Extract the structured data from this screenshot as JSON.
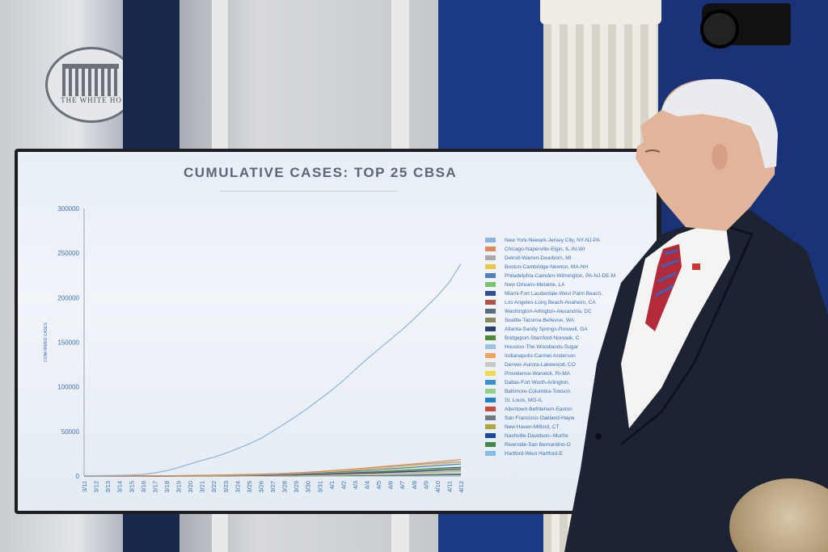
{
  "seal": {
    "text": "THE WHITE HO"
  },
  "chart_data": {
    "type": "line",
    "title": "CUMULATIVE CASES: TOP 25 CBSA",
    "ylabel": "CONFIRMED CASES",
    "xlabel": "",
    "ylim": [
      0,
      300000
    ],
    "yticks": [
      "300000",
      "250000",
      "200000",
      "150000",
      "100000",
      "50000",
      "0"
    ],
    "x": [
      "3/11",
      "3/12",
      "3/13",
      "3/14",
      "3/15",
      "3/16",
      "3/17",
      "3/18",
      "3/19",
      "3/20",
      "3/21",
      "3/22",
      "3/23",
      "3/24",
      "3/25",
      "3/26",
      "3/27",
      "3/28",
      "3/29",
      "3/30",
      "3/31",
      "4/1",
      "4/2",
      "4/3",
      "4/4",
      "4/5",
      "4/6",
      "4/7",
      "4/8",
      "4/9",
      "4/10",
      "4/11",
      "4/12"
    ],
    "legend_position": "right",
    "series": [
      {
        "name": "New York-Newark-Jersey City, NY-NJ-PA",
        "color": "#8fb4dc",
        "values": [
          300,
          400,
          600,
          800,
          1200,
          1800,
          3500,
          6000,
          9500,
          13500,
          17500,
          21000,
          25500,
          30500,
          36000,
          42000,
          50000,
          58500,
          67000,
          76000,
          86000,
          96000,
          107000,
          119000,
          131000,
          142000,
          153000,
          164000,
          176000,
          189000,
          202000,
          217000,
          238000
        ]
      },
      {
        "name": "Chicago-Naperville-Elgin, IL-IN-WI",
        "color": "#e08a5a",
        "values": [
          0,
          0,
          0,
          0,
          0,
          0,
          100,
          150,
          250,
          400,
          600,
          800,
          1000,
          1300,
          1600,
          2000,
          2500,
          3000,
          3600,
          4300,
          5100,
          6000,
          7000,
          8000,
          9100,
          10200,
          11300,
          12400,
          13600,
          14800,
          16000,
          17200,
          18500
        ]
      },
      {
        "name": "Detroit-Warren-Dearborn, MI",
        "color": "#a9a9a9",
        "values": [
          0,
          0,
          0,
          0,
          0,
          0,
          50,
          100,
          200,
          350,
          500,
          700,
          900,
          1200,
          1500,
          1900,
          2400,
          2900,
          3500,
          4200,
          5000,
          5900,
          6800,
          7800,
          8800,
          9800,
          10800,
          11800,
          12800,
          13700,
          14500,
          15300,
          16000
        ]
      },
      {
        "name": "Boston-Cambridge-Newton, MA-NH",
        "color": "#e8c84a",
        "values": [
          0,
          0,
          0,
          0,
          0,
          0,
          50,
          80,
          150,
          250,
          400,
          550,
          750,
          1000,
          1300,
          1700,
          2100,
          2600,
          3100,
          3700,
          4400,
          5100,
          5900,
          6800,
          7700,
          8600,
          9500,
          10500,
          11500,
          12500,
          13500,
          14500,
          15500
        ]
      },
      {
        "name": "Philadelphia-Camden-Wilmington, PA-NJ-DE-MD",
        "color": "#4f7fc1",
        "values": [
          0,
          0,
          0,
          0,
          0,
          0,
          40,
          70,
          120,
          200,
          300,
          450,
          600,
          800,
          1050,
          1350,
          1700,
          2100,
          2550,
          3050,
          3650,
          4300,
          5000,
          5800,
          6600,
          7400,
          8200,
          9000,
          9900,
          10800,
          11700,
          12600,
          13500
        ]
      },
      {
        "name": "New Orleans-Metairie, LA",
        "color": "#7cc36b",
        "values": [
          0,
          0,
          0,
          0,
          0,
          0,
          30,
          60,
          100,
          180,
          280,
          400,
          550,
          750,
          1000,
          1300,
          1650,
          2000,
          2400,
          2800,
          3200,
          3700,
          4200,
          4700,
          5200,
          5700,
          6200,
          6700,
          7200,
          7600,
          8000,
          8400,
          8800
        ]
      },
      {
        "name": "Miami-Fort Lauderdale-West Palm Beach, FL",
        "color": "#2f4f8f",
        "values": [
          0,
          0,
          0,
          0,
          0,
          0,
          30,
          50,
          90,
          150,
          230,
          330,
          450,
          600,
          800,
          1000,
          1250,
          1550,
          1900,
          2300,
          2750,
          3250,
          3800,
          4400,
          5000,
          5600,
          6200,
          6800,
          7400,
          8000,
          8600,
          9200,
          9800
        ]
      },
      {
        "name": "Los Angeles-Long Beach-Anaheim, CA",
        "color": "#b0524a",
        "values": [
          0,
          0,
          0,
          0,
          0,
          0,
          30,
          50,
          80,
          130,
          200,
          290,
          400,
          530,
          690,
          880,
          1100,
          1350,
          1650,
          2000,
          2400,
          2850,
          3350,
          3900,
          4500,
          5100,
          5700,
          6300,
          6900,
          7500,
          8100,
          8700,
          9300
        ]
      },
      {
        "name": "Washington-Arlington-Alexandria, DC",
        "color": "#5a6b7c",
        "values": [
          0,
          0,
          0,
          0,
          0,
          0,
          20,
          40,
          70,
          110,
          160,
          230,
          320,
          430,
          560,
          720,
          900,
          1100,
          1350,
          1650,
          2000,
          2400,
          2850,
          3350,
          3900,
          4450,
          5000,
          5550,
          6100,
          6650,
          7200,
          7750,
          8300
        ]
      },
      {
        "name": "Seattle-Tacoma-Bellevue, WA",
        "color": "#8c8a5c",
        "values": [
          0,
          0,
          0,
          0,
          0,
          0,
          200,
          300,
          450,
          600,
          800,
          1000,
          1250,
          1500,
          1800,
          2100,
          2400,
          2700,
          3000,
          3300,
          3600,
          3900,
          4200,
          4500,
          4800,
          5100,
          5400,
          5700,
          6000,
          6300,
          6600,
          6900,
          7200
        ]
      },
      {
        "name": "Atlanta-Sandy Springs-Roswell, GA",
        "color": "#2a3f6e",
        "values": [
          0,
          0,
          0,
          0,
          0,
          0,
          20,
          40,
          70,
          110,
          170,
          250,
          350,
          470,
          610,
          770,
          950,
          1150,
          1380,
          1640,
          1930,
          2250,
          2600,
          2980,
          3390,
          3830,
          4300,
          4800,
          5330,
          5890,
          6480,
          7100,
          7750
        ]
      },
      {
        "name": "Bridgeport-Stamford-Norwalk, CT",
        "color": "#4a8a3a",
        "values": [
          0,
          0,
          0,
          0,
          0,
          0,
          20,
          40,
          70,
          110,
          160,
          230,
          320,
          430,
          560,
          710,
          880,
          1070,
          1290,
          1540,
          1820,
          2130,
          2470,
          2840,
          3240,
          3670,
          4130,
          4620,
          5140,
          5690,
          6270,
          6880,
          7500
        ]
      },
      {
        "name": "Houston-The Woodlands-Sugar Land, TX",
        "color": "#9cc3e0",
        "values": [
          0,
          0,
          0,
          0,
          0,
          0,
          20,
          30,
          60,
          90,
          140,
          200,
          270,
          360,
          470,
          600,
          750,
          920,
          1110,
          1320,
          1550,
          1800,
          2070,
          2360,
          2670,
          3000,
          3350,
          3720,
          4110,
          4520,
          4950,
          5400,
          5870
        ]
      },
      {
        "name": "Indianapolis-Carmel-Anderson, IN",
        "color": "#f0a35a",
        "values": [
          0,
          0,
          0,
          0,
          0,
          0,
          10,
          20,
          40,
          70,
          110,
          160,
          220,
          300,
          390,
          500,
          620,
          760,
          920,
          1100,
          1300,
          1520,
          1760,
          2020,
          2300,
          2600,
          2920,
          3260,
          3620,
          4000,
          4400,
          4820,
          5260
        ]
      },
      {
        "name": "Denver-Aurora-Lakewood, CO",
        "color": "#c8c8c8",
        "values": [
          0,
          0,
          0,
          0,
          0,
          0,
          20,
          40,
          70,
          100,
          140,
          190,
          250,
          320,
          400,
          490,
          590,
          700,
          820,
          950,
          1090,
          1240,
          1400,
          1570,
          1750,
          1940,
          2140,
          2350,
          2570,
          2800,
          3040,
          3290,
          3550
        ]
      },
      {
        "name": "Providence-Warwick, RI-MA",
        "color": "#f2d94e",
        "values": [
          0,
          0,
          0,
          0,
          0,
          0,
          10,
          20,
          30,
          50,
          80,
          120,
          170,
          230,
          300,
          380,
          470,
          570,
          680,
          800,
          930,
          1070,
          1220,
          1380,
          1550,
          1730,
          1920,
          2120,
          2330,
          2550,
          2780,
          3020,
          3270
        ]
      },
      {
        "name": "Dallas-Fort Worth-Arlington, TX",
        "color": "#3a8fd0",
        "values": [
          0,
          0,
          0,
          0,
          0,
          0,
          10,
          20,
          40,
          60,
          90,
          130,
          180,
          240,
          310,
          390,
          480,
          580,
          690,
          810,
          940,
          1080,
          1230,
          1390,
          1560,
          1740,
          1930,
          2130,
          2340,
          2560,
          2790,
          3030,
          3280
        ]
      },
      {
        "name": "Baltimore-Columbia-Towson, MD",
        "color": "#8fd08a",
        "values": [
          0,
          0,
          0,
          0,
          0,
          0,
          10,
          20,
          30,
          50,
          70,
          100,
          140,
          190,
          250,
          320,
          400,
          490,
          590,
          700,
          820,
          950,
          1090,
          1240,
          1400,
          1570,
          1750,
          1940,
          2140,
          2350,
          2570,
          2800,
          3040
        ]
      },
      {
        "name": "St. Louis, MO-IL",
        "color": "#1f7fc8",
        "values": [
          0,
          0,
          0,
          0,
          0,
          0,
          10,
          20,
          30,
          50,
          70,
          100,
          140,
          180,
          230,
          290,
          360,
          440,
          530,
          630,
          740,
          860,
          990,
          1130,
          1280,
          1440,
          1610,
          1790,
          1980,
          2180,
          2390,
          2610,
          2840
        ]
      },
      {
        "name": "Allentown-Bethlehem-Easton, PA-NJ",
        "color": "#c9493a",
        "values": [
          0,
          0,
          0,
          0,
          0,
          0,
          0,
          10,
          20,
          30,
          50,
          70,
          100,
          140,
          190,
          250,
          320,
          400,
          490,
          590,
          700,
          820,
          950,
          1090,
          1240,
          1400,
          1570,
          1750,
          1940,
          2140,
          2350,
          2570,
          2800
        ]
      },
      {
        "name": "San Francisco-Oakland-Hayward, CA",
        "color": "#6d7a86",
        "values": [
          0,
          0,
          0,
          0,
          0,
          0,
          20,
          40,
          60,
          90,
          120,
          160,
          200,
          250,
          300,
          360,
          420,
          490,
          560,
          640,
          720,
          810,
          900,
          1000,
          1100,
          1210,
          1320,
          1440,
          1560,
          1690,
          1820,
          1960,
          2100
        ]
      },
      {
        "name": "New Haven-Milford, CT",
        "color": "#b3a53e",
        "values": [
          0,
          0,
          0,
          0,
          0,
          0,
          0,
          10,
          20,
          30,
          40,
          60,
          80,
          110,
          150,
          200,
          260,
          330,
          410,
          500,
          600,
          710,
          830,
          960,
          1100,
          1250,
          1410,
          1580,
          1760,
          1950,
          2150,
          2360,
          2580
        ]
      },
      {
        "name": "Nashville-Davidson--Murfreesboro--Franklin, TN",
        "color": "#1a4a9a",
        "values": [
          0,
          0,
          0,
          0,
          0,
          0,
          10,
          20,
          30,
          50,
          70,
          100,
          130,
          170,
          210,
          260,
          310,
          370,
          430,
          500,
          570,
          650,
          730,
          820,
          910,
          1010,
          1110,
          1220,
          1330,
          1450,
          1570,
          1700,
          1830
        ]
      },
      {
        "name": "Riverside-San Bernardino-Ontario, CA",
        "color": "#3f8a4a",
        "values": [
          0,
          0,
          0,
          0,
          0,
          0,
          0,
          10,
          20,
          30,
          40,
          60,
          80,
          110,
          140,
          180,
          220,
          270,
          320,
          380,
          440,
          510,
          580,
          660,
          740,
          830,
          920,
          1020,
          1120,
          1230,
          1340,
          1460,
          1580
        ]
      },
      {
        "name": "Hartford-West Hartford-East Hartford, CT",
        "color": "#86bde8",
        "values": [
          0,
          0,
          0,
          0,
          0,
          0,
          0,
          10,
          20,
          30,
          40,
          60,
          80,
          100,
          130,
          160,
          200,
          240,
          290,
          340,
          400,
          460,
          530,
          600,
          680,
          760,
          850,
          940,
          1040,
          1140,
          1250,
          1360,
          1480
        ]
      }
    ],
    "legend_labels_visible": [
      "New York-Newark-Jersey City, NY-NJ-PA",
      "Chicago-Naperville-Elgin, IL-IN-WI",
      "Detroit-Warren-Dearborn, MI",
      "Boston-Cambridge-Newton, MA-NH",
      "Philadelphia-Camden-Wilmington, PA-NJ-DE-M",
      "New Orleans-Metairie, LA",
      "Miami-Fort Lauderdale-West Palm Beach,",
      "Los Angeles-Long Beach-Anaheim, CA",
      "Washington-Arlington-Alexandria, DC",
      "Seattle-Tacoma-Bellevue, WA",
      "Atlanta-Sandy Springs-Roswell, GA",
      "Bridgeport-Stamford-Norwalk, C",
      "Houston-The Woodlands-Sugar",
      "Indianapolis-Carmel-Anderson",
      "Denver-Aurora-Lakewood, CO",
      "Providence-Warwick, RI-MA",
      "Dallas-Fort Worth-Arlington,",
      "Baltimore-Columbia-Towson",
      "St. Louis, MO-IL",
      "Allentown-Bethlehem-Easton",
      "San Francisco-Oakland-Hayw",
      "New Haven-Milford, CT",
      "Nashville-Davidson--Murfre",
      "Riverside-San Bernardino-O",
      "Hartford-West Hartford-E"
    ]
  }
}
